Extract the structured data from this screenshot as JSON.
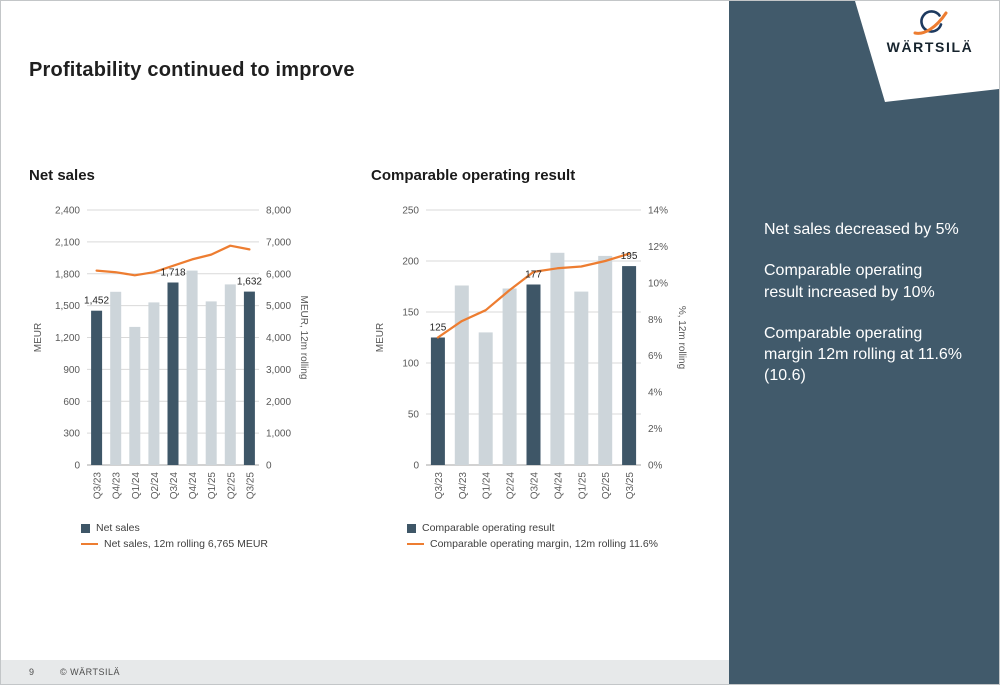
{
  "slide": {
    "title": "Profitability continued to improve",
    "page_number": "9",
    "footer_copyright": "© WÄRTSILÄ",
    "logo_text": "WÄRTSILÄ"
  },
  "colors": {
    "panel_bg": "#415A6B",
    "bar_dark": "#3E5667",
    "bar_light": "#CDD5DA",
    "line_orange": "#ED7D31",
    "footer_bg": "#E7E9EA",
    "grid_line": "#D9D9D9",
    "axis_line": "#A6A6A6",
    "axis_text": "#595959",
    "title_text": "#1F1F1F",
    "panel_text": "#FFFFFF",
    "logo_navy": "#17242E",
    "logo_blue": "#1D3A5F"
  },
  "right_panel": {
    "bullets": [
      "Net sales decreased by 5%",
      "Comparable operating result increased by 10%",
      "Comparable operating margin 12m rolling at 11.6% (10.6)"
    ]
  },
  "chart_data": [
    {
      "type": "bar+line",
      "title": "Net sales",
      "ylabel_left": "MEUR",
      "ylabel_right": "MEUR, 12m rolling",
      "categories": [
        "Q3/23",
        "Q4/23",
        "Q1/24",
        "Q2/24",
        "Q3/24",
        "Q4/24",
        "Q1/25",
        "Q2/25",
        "Q3/25"
      ],
      "bars": {
        "name": "Net sales",
        "values": [
          1452,
          1630,
          1300,
          1530,
          1718,
          1830,
          1540,
          1700,
          1632
        ],
        "highlight_indices": [
          0,
          4,
          8
        ]
      },
      "bar_labels": {
        "0": "1,452",
        "4": "1,718",
        "8": "1,632"
      },
      "line": {
        "name": "Net sales, 12m rolling",
        "values": [
          6100,
          6050,
          5950,
          6050,
          6250,
          6450,
          6600,
          6880,
          6765
        ]
      },
      "left_axis": {
        "min": 0,
        "max": 2400,
        "labels": [
          "0",
          "300",
          "600",
          "900",
          "1,200",
          "1,500",
          "1,800",
          "2,100",
          "2,400"
        ]
      },
      "right_axis": {
        "min": 0,
        "max": 8000,
        "labels": [
          "0",
          "1,000",
          "2,000",
          "3,000",
          "4,000",
          "5,000",
          "6,000",
          "7,000",
          "8,000"
        ]
      },
      "legend": [
        {
          "type": "bar",
          "label": "Net sales"
        },
        {
          "type": "line",
          "label": "Net sales, 12m rolling 6,765 MEUR"
        }
      ]
    },
    {
      "type": "bar+line",
      "title": "Comparable operating result",
      "ylabel_left": "MEUR",
      "ylabel_right": "%, 12m rolling",
      "categories": [
        "Q3/23",
        "Q4/23",
        "Q1/24",
        "Q2/24",
        "Q3/24",
        "Q4/24",
        "Q1/25",
        "Q2/25",
        "Q3/25"
      ],
      "bars": {
        "name": "Comparable operating result",
        "values": [
          125,
          176,
          130,
          173,
          177,
          208,
          170,
          205,
          195
        ],
        "highlight_indices": [
          0,
          4,
          8
        ]
      },
      "bar_labels": {
        "0": "125",
        "4": "177",
        "8": "195"
      },
      "line": {
        "name": "Comparable operating margin, 12m rolling",
        "values": [
          7.0,
          7.9,
          8.5,
          9.6,
          10.6,
          10.8,
          10.9,
          11.2,
          11.6
        ]
      },
      "left_axis": {
        "min": 0,
        "max": 250,
        "labels": [
          "0",
          "50",
          "100",
          "150",
          "200",
          "250"
        ]
      },
      "right_axis": {
        "min": 0,
        "max": 14,
        "labels": [
          "0%",
          "2%",
          "4%",
          "6%",
          "8%",
          "10%",
          "12%",
          "14%"
        ]
      },
      "legend": [
        {
          "type": "bar",
          "label": "Comparable operating result"
        },
        {
          "type": "line",
          "label": "Comparable operating margin, 12m rolling 11.6%"
        }
      ]
    }
  ]
}
